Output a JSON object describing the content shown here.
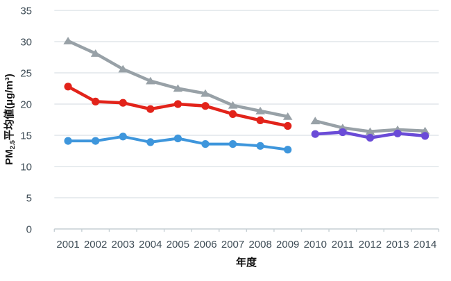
{
  "chart_data": {
    "type": "line",
    "title": "",
    "xlabel": "年度",
    "ylabel": {
      "prefix": "PM",
      "sub": "2.5",
      "suffix": "平均値(μg/m³)"
    },
    "ylim": [
      0,
      35
    ],
    "yticks": [
      0,
      5,
      10,
      15,
      20,
      25,
      30,
      35
    ],
    "ytick_labels": [
      "0",
      "5",
      "10",
      "15",
      "20",
      "25",
      "30",
      "35"
    ],
    "x_categories": [
      "2001",
      "2002",
      "2003",
      "2004",
      "2005",
      "2006",
      "2007",
      "2008",
      "2009",
      "2010",
      "2011",
      "2012",
      "2013",
      "2014"
    ],
    "grid": "horizontal-only",
    "legend": "none",
    "series": [
      {
        "name": "gray-triangle-2001-2009",
        "marker": "triangle",
        "color": "#98A1A7",
        "x": [
          "2001",
          "2002",
          "2003",
          "2004",
          "2005",
          "2006",
          "2007",
          "2008",
          "2009"
        ],
        "values": [
          30.1,
          28.1,
          25.6,
          23.7,
          22.5,
          21.7,
          19.8,
          18.9,
          18.0
        ]
      },
      {
        "name": "red-circle-2001-2009",
        "marker": "circle",
        "color": "#E2231A",
        "x": [
          "2001",
          "2002",
          "2003",
          "2004",
          "2005",
          "2006",
          "2007",
          "2008",
          "2009"
        ],
        "values": [
          22.8,
          20.4,
          20.2,
          19.2,
          20.0,
          19.7,
          18.4,
          17.4,
          16.5
        ]
      },
      {
        "name": "blue-circle-2001-2009",
        "marker": "circle",
        "color": "#3E96DC",
        "x": [
          "2001",
          "2002",
          "2003",
          "2004",
          "2005",
          "2006",
          "2007",
          "2008",
          "2009"
        ],
        "values": [
          14.1,
          14.1,
          14.8,
          13.9,
          14.5,
          13.6,
          13.6,
          13.3,
          12.7
        ]
      },
      {
        "name": "gray-triangle-2010-2014",
        "marker": "triangle",
        "color": "#98A1A7",
        "x": [
          "2010",
          "2011",
          "2012",
          "2013",
          "2014"
        ],
        "values": [
          17.3,
          16.2,
          15.6,
          15.9,
          15.7
        ]
      },
      {
        "name": "purple-circle-2010-2014",
        "marker": "circle",
        "color": "#6A4BD7",
        "x": [
          "2010",
          "2011",
          "2012",
          "2013",
          "2014"
        ],
        "values": [
          15.2,
          15.5,
          14.6,
          15.3,
          14.9
        ]
      }
    ],
    "style": {
      "gridline_color": "#DAE1E5",
      "axis_line_color": "#C6CFD4",
      "tick_text_color": "#3E4C56",
      "title_text_color": "#111111"
    }
  }
}
